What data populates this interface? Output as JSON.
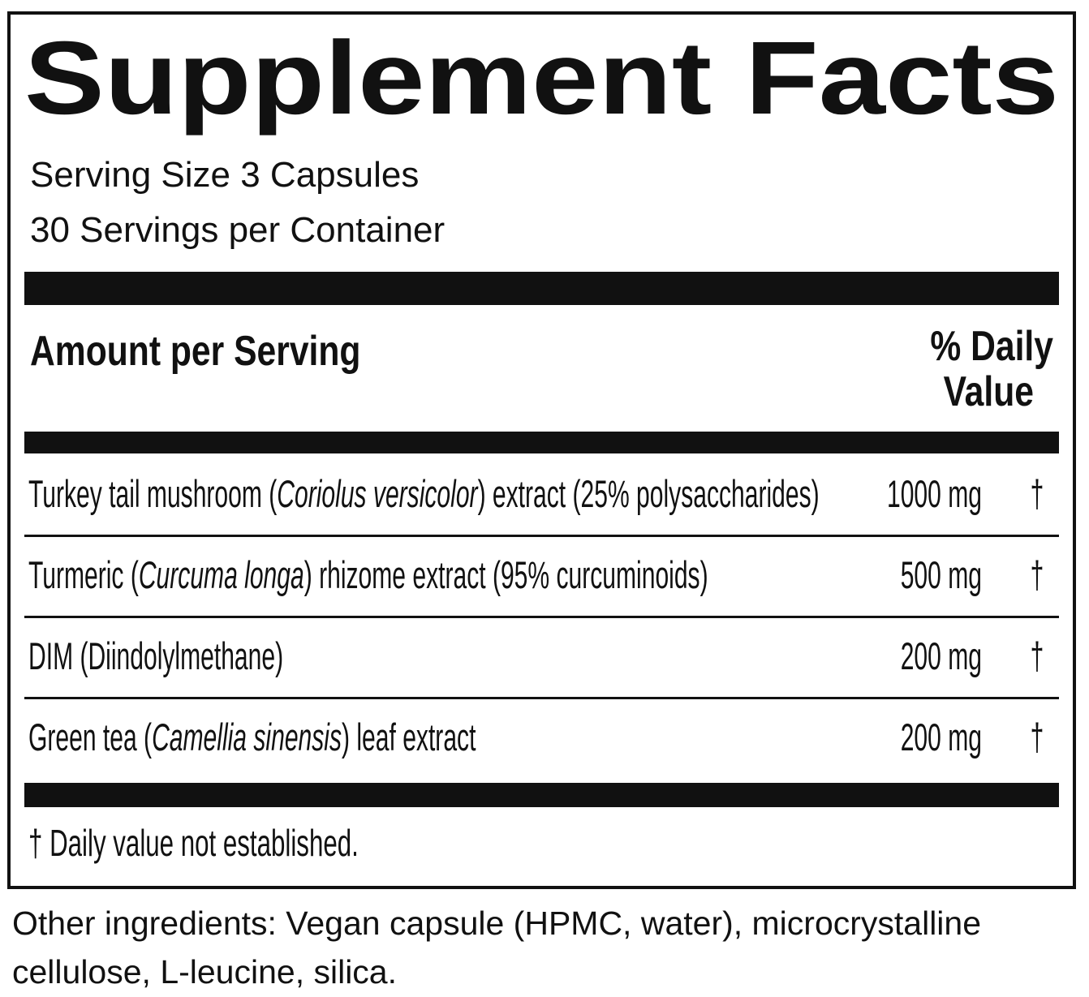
{
  "header": {
    "title": "Supplement Facts",
    "serving_size": "Serving Size 3 Capsules",
    "servings_per_container": "30 Servings per Container"
  },
  "table": {
    "header": {
      "amount": "Amount per Serving",
      "daily_value": [
        "% Daily",
        "Value"
      ]
    },
    "rows": [
      {
        "name": [
          {
            "text": "Turkey tail mushroom (",
            "italic": false
          },
          {
            "text": "Coriolus versicolor",
            "italic": true
          },
          {
            "text": ") extract (25% polysaccharides)",
            "italic": false
          }
        ],
        "amount": "1000 mg",
        "daily_value": "†"
      },
      {
        "name": [
          {
            "text": "Turmeric (",
            "italic": false
          },
          {
            "text": "Curcuma longa",
            "italic": true
          },
          {
            "text": ") rhizome extract (95% curcuminoids)",
            "italic": false
          }
        ],
        "amount": "500 mg",
        "daily_value": "†"
      },
      {
        "name": [
          {
            "text": "DIM (Diindolylmethane)",
            "italic": false
          }
        ],
        "amount": "200 mg",
        "daily_value": "†"
      },
      {
        "name": [
          {
            "text": "Green tea (",
            "italic": false
          },
          {
            "text": "Camellia sinensis",
            "italic": true
          },
          {
            "text": ") leaf extract",
            "italic": false
          }
        ],
        "amount": "200 mg",
        "daily_value": "†"
      }
    ]
  },
  "footnote": "† Daily value not established.",
  "other_ingredients": [
    "Other ingredients: Vegan capsule (HPMC, water), microcrystalline",
    "cellulose, L-leucine, silica."
  ]
}
